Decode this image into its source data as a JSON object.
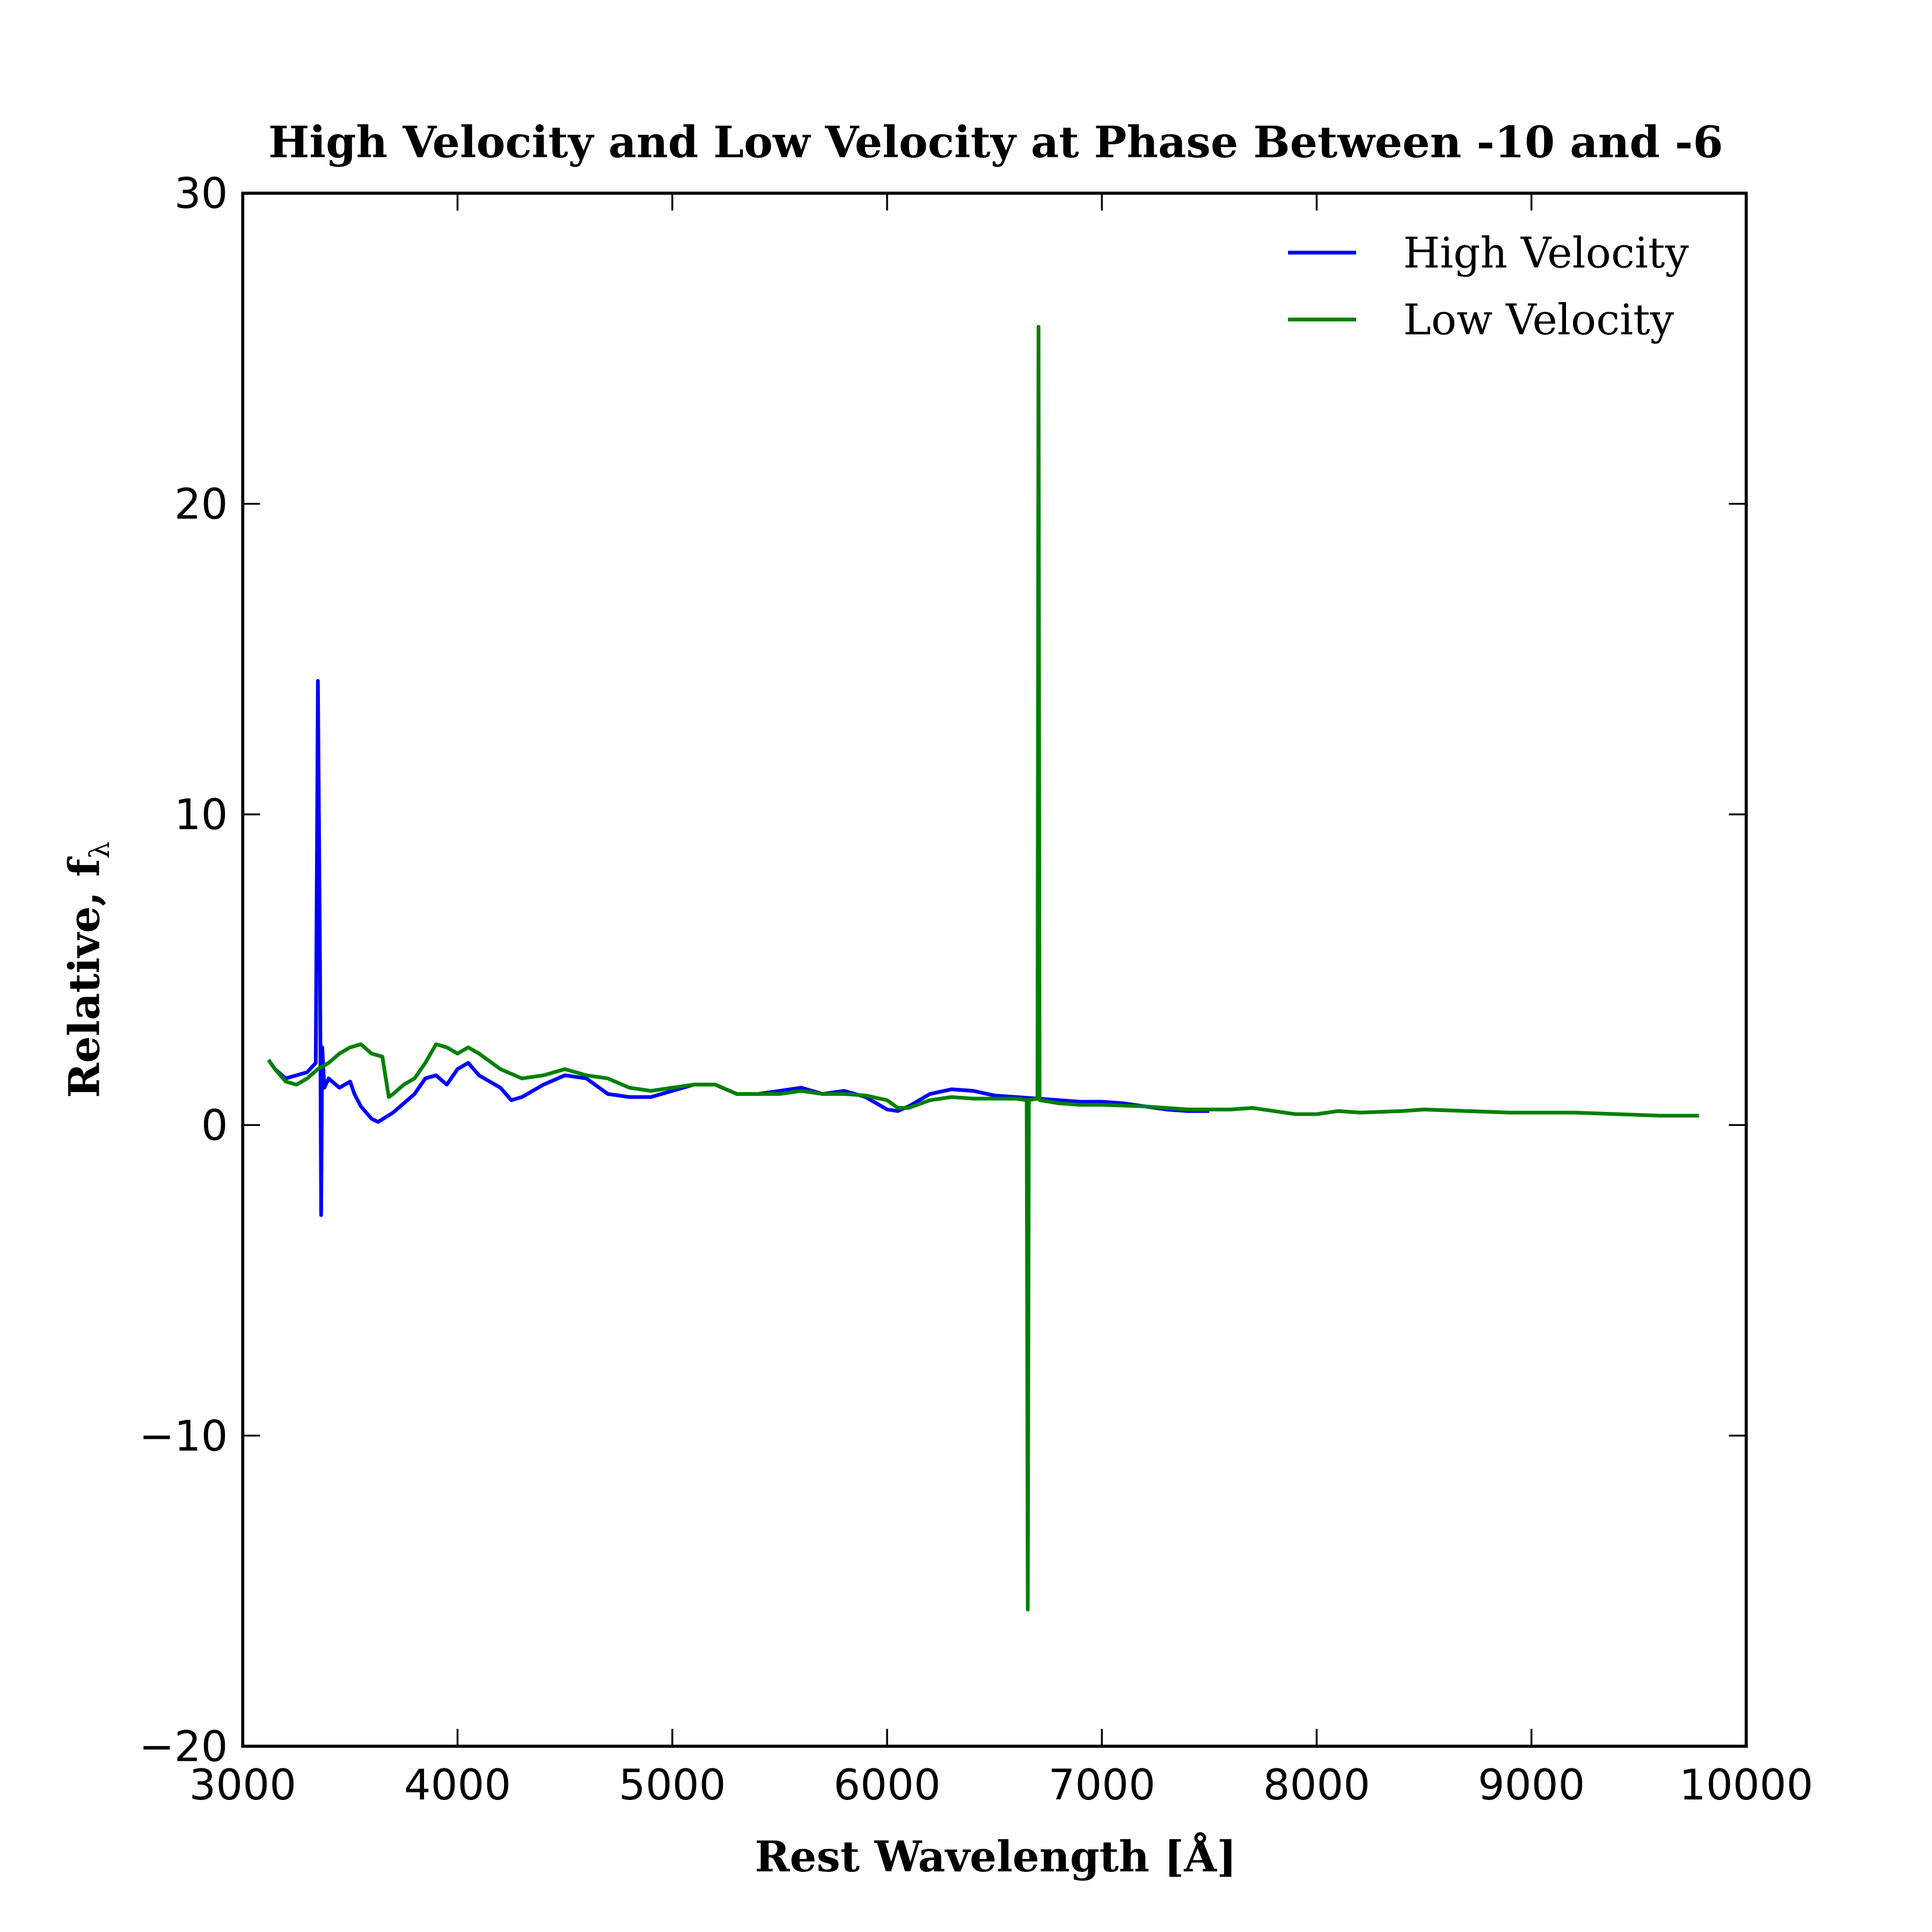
{
  "chart_data": {
    "type": "line",
    "title": "High Velocity and Low Velocity at Phase Between -10 and -6",
    "x_label": "Rest Wavelength [Å]",
    "y_label": "Relative, f",
    "y_label_subscript": "λ",
    "xlim": [
      3000,
      10000
    ],
    "ylim": [
      -20,
      30
    ],
    "xticks": [
      3000,
      4000,
      5000,
      6000,
      7000,
      8000,
      9000,
      10000
    ],
    "yticks": [
      {
        "value": -20,
        "label": "−20"
      },
      {
        "value": -10,
        "label": "−10"
      },
      0,
      10,
      20,
      30
    ],
    "grid": false,
    "legend": "upper right",
    "series": [
      {
        "name": "High Velocity",
        "color": "#0000ff",
        "x": [
          3130,
          3150,
          3200,
          3250,
          3300,
          3340,
          3350,
          3360,
          3365,
          3370,
          3380,
          3400,
          3450,
          3500,
          3520,
          3550,
          3600,
          3630,
          3700,
          3800,
          3850,
          3900,
          3950,
          4000,
          4050,
          4100,
          4200,
          4250,
          4300,
          4400,
          4500,
          4600,
          4700,
          4800,
          4900,
          5000,
          5100,
          5200,
          5300,
          5400,
          5500,
          5600,
          5700,
          5800,
          5900,
          6000,
          6050,
          6100,
          6200,
          6300,
          6400,
          6500,
          6600,
          6700,
          6800,
          6900,
          7000,
          7100,
          7200,
          7300,
          7400,
          7500
        ],
        "values": [
          2.0,
          1.8,
          1.5,
          1.6,
          1.7,
          2.0,
          14.3,
          5,
          -2.9,
          2.5,
          1.2,
          1.5,
          1.2,
          1.4,
          1.0,
          0.6,
          0.2,
          0.1,
          0.4,
          1.0,
          1.5,
          1.6,
          1.3,
          1.8,
          2.0,
          1.6,
          1.2,
          0.8,
          0.9,
          1.3,
          1.6,
          1.5,
          1.0,
          0.9,
          0.9,
          1.1,
          1.3,
          1.3,
          1.0,
          1.0,
          1.1,
          1.2,
          1.0,
          1.1,
          0.9,
          0.5,
          0.45,
          0.6,
          1.0,
          1.15,
          1.1,
          0.95,
          0.9,
          0.85,
          0.8,
          0.75,
          0.75,
          0.7,
          0.6,
          0.5,
          0.45,
          0.45
        ]
      },
      {
        "name": "Low Velocity",
        "color": "#008000",
        "x": [
          3120,
          3150,
          3200,
          3250,
          3300,
          3350,
          3400,
          3450,
          3500,
          3550,
          3600,
          3650,
          3680,
          3700,
          3750,
          3800,
          3850,
          3900,
          3950,
          4000,
          4050,
          4100,
          4200,
          4300,
          4400,
          4500,
          4600,
          4700,
          4800,
          4900,
          5000,
          5100,
          5200,
          5300,
          5400,
          5500,
          5600,
          5700,
          5800,
          5900,
          6000,
          6050,
          6100,
          6200,
          6300,
          6400,
          6500,
          6600,
          6650,
          6655,
          6660,
          6700,
          6705,
          6710,
          6800,
          6900,
          7000,
          7200,
          7400,
          7600,
          7700,
          7800,
          7900,
          8000,
          8100,
          8200,
          8400,
          8500,
          8700,
          8900,
          9000,
          9200,
          9400,
          9600,
          9780
        ],
        "values": [
          2.1,
          1.8,
          1.4,
          1.3,
          1.5,
          1.8,
          2.0,
          2.3,
          2.5,
          2.6,
          2.3,
          2.2,
          0.9,
          1.0,
          1.3,
          1.5,
          2.0,
          2.6,
          2.5,
          2.3,
          2.5,
          2.3,
          1.8,
          1.5,
          1.6,
          1.8,
          1.6,
          1.5,
          1.2,
          1.1,
          1.2,
          1.3,
          1.3,
          1.0,
          1.0,
          1.0,
          1.1,
          1.0,
          1.0,
          0.95,
          0.8,
          0.55,
          0.55,
          0.8,
          0.9,
          0.85,
          0.85,
          0.85,
          0.8,
          -15.6,
          0.8,
          0.85,
          25.7,
          0.8,
          0.7,
          0.65,
          0.65,
          0.6,
          0.5,
          0.5,
          0.55,
          0.45,
          0.35,
          0.35,
          0.45,
          0.4,
          0.45,
          0.5,
          0.45,
          0.4,
          0.4,
          0.4,
          0.35,
          0.3,
          0.3
        ]
      }
    ]
  }
}
